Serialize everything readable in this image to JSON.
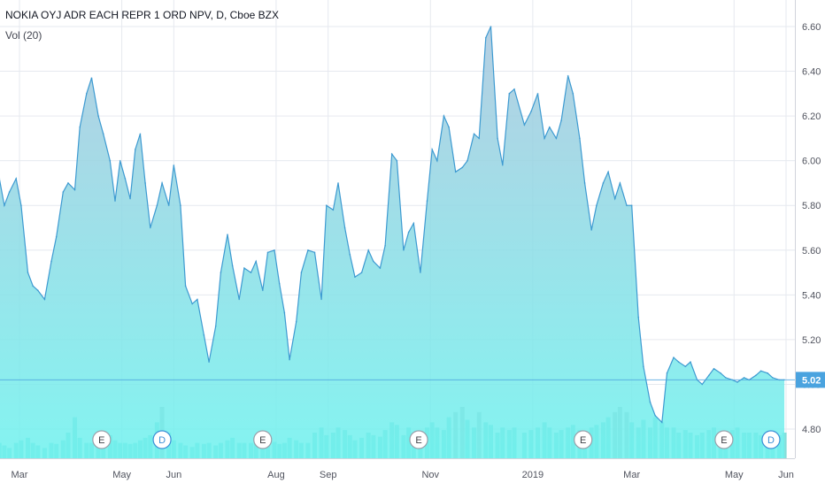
{
  "header": {
    "title": "NOKIA OYJ ADR EACH REPR 1 ORD NPV, D, Cboe BZX",
    "volume_label": "Vol (20)"
  },
  "colors": {
    "price_line": "#3d9ad1",
    "area_top": "#a9c6dd",
    "area_bottom": "#6df2ee",
    "volume": "#5fd6d0",
    "volume_highlight": "#9fb5b5",
    "last_price_badge": "#4aa3df",
    "axis_text": "#50535e",
    "grid": "#e6e9ef"
  },
  "chart_data": {
    "type": "area",
    "title": "NOKIA OYJ ADR EACH REPR 1 ORD NPV, D, Cboe BZX",
    "ylim": [
      4.7,
      6.64
    ],
    "y_ticks": [
      "6.60",
      "6.40",
      "6.20",
      "6.00",
      "5.80",
      "5.60",
      "5.40",
      "5.20",
      "5.00",
      "4.80"
    ],
    "x_ticks": [
      "Mar",
      "May",
      "Jun",
      "Aug",
      "Sep",
      "Nov",
      "2019",
      "Mar",
      "May",
      "Jun"
    ],
    "x_tick_dates": [
      "2018-03-01",
      "2018-05-01",
      "2018-06-01",
      "2018-08-01",
      "2018-09-01",
      "2018-11-01",
      "2019-01-01",
      "2019-03-01",
      "2019-05-01",
      "2019-06-01"
    ],
    "last_price": "5.02",
    "series": [
      {
        "dates": [
          "2018-02-14",
          "2018-02-17",
          "2018-02-20",
          "2018-02-23",
          "2018-02-27",
          "2018-03-02",
          "2018-03-06",
          "2018-03-09",
          "2018-03-12",
          "2018-03-16",
          "2018-03-20",
          "2018-03-23",
          "2018-03-27",
          "2018-03-30",
          "2018-04-03",
          "2018-04-06",
          "2018-04-10",
          "2018-04-13",
          "2018-04-17",
          "2018-04-20",
          "2018-04-24",
          "2018-04-27",
          "2018-04-30",
          "2018-05-03",
          "2018-05-06",
          "2018-05-09",
          "2018-05-12",
          "2018-05-15",
          "2018-05-18",
          "2018-05-22",
          "2018-05-25",
          "2018-05-29",
          "2018-06-01",
          "2018-06-05",
          "2018-06-08",
          "2018-06-12",
          "2018-06-15",
          "2018-06-19",
          "2018-06-22",
          "2018-06-26",
          "2018-06-29",
          "2018-07-03",
          "2018-07-06",
          "2018-07-10",
          "2018-07-13",
          "2018-07-17",
          "2018-07-20",
          "2018-07-24",
          "2018-07-27",
          "2018-07-31",
          "2018-08-03",
          "2018-08-06",
          "2018-08-09",
          "2018-08-13",
          "2018-08-16",
          "2018-08-20",
          "2018-08-24",
          "2018-08-28",
          "2018-08-31",
          "2018-09-04",
          "2018-09-07",
          "2018-09-11",
          "2018-09-14",
          "2018-09-17",
          "2018-09-21",
          "2018-09-25",
          "2018-09-28",
          "2018-10-02",
          "2018-10-05",
          "2018-10-09",
          "2018-10-12",
          "2018-10-16",
          "2018-10-19",
          "2018-10-22",
          "2018-10-26",
          "2018-10-30",
          "2018-11-02",
          "2018-11-05",
          "2018-11-09",
          "2018-11-12",
          "2018-11-16",
          "2018-11-20",
          "2018-11-23",
          "2018-11-27",
          "2018-11-30",
          "2018-12-04",
          "2018-12-07",
          "2018-12-11",
          "2018-12-14",
          "2018-12-18",
          "2018-12-21",
          "2018-12-27",
          "2018-12-31",
          "2019-01-04",
          "2019-01-08",
          "2019-01-11",
          "2019-01-15",
          "2019-01-18",
          "2019-01-22",
          "2019-01-25",
          "2019-01-29",
          "2019-02-01",
          "2019-02-05",
          "2019-02-08",
          "2019-02-12",
          "2019-02-15",
          "2019-02-19",
          "2019-02-22",
          "2019-02-26",
          "2019-03-01",
          "2019-03-05",
          "2019-03-08",
          "2019-03-12",
          "2019-03-15",
          "2019-03-19",
          "2019-03-22",
          "2019-03-26",
          "2019-03-29",
          "2019-04-02",
          "2019-04-05",
          "2019-04-09",
          "2019-04-12",
          "2019-04-16",
          "2019-04-19",
          "2019-04-23",
          "2019-04-26",
          "2019-04-30",
          "2019-05-03",
          "2019-05-07",
          "2019-05-10",
          "2019-05-14",
          "2019-05-17",
          "2019-05-21",
          "2019-05-24",
          "2019-05-28",
          "2019-05-31"
        ],
        "values": [
          5.7,
          5.92,
          5.8,
          5.86,
          5.92,
          5.8,
          5.5,
          5.44,
          5.42,
          5.38,
          5.55,
          5.66,
          5.86,
          5.9,
          5.87,
          6.15,
          6.3,
          6.37,
          6.2,
          6.12,
          6.0,
          5.82,
          6.0,
          5.92,
          5.83,
          6.05,
          6.12,
          5.9,
          5.7,
          5.8,
          5.9,
          5.8,
          5.98,
          5.8,
          5.44,
          5.36,
          5.38,
          5.22,
          5.1,
          5.26,
          5.5,
          5.67,
          5.53,
          5.38,
          5.52,
          5.5,
          5.55,
          5.42,
          5.59,
          5.6,
          5.45,
          5.32,
          5.11,
          5.28,
          5.5,
          5.6,
          5.59,
          5.38,
          5.8,
          5.78,
          5.9,
          5.7,
          5.58,
          5.48,
          5.5,
          5.6,
          5.55,
          5.52,
          5.62,
          6.03,
          6.0,
          5.6,
          5.68,
          5.72,
          5.5,
          5.82,
          6.05,
          6.0,
          6.2,
          6.15,
          5.95,
          5.97,
          6.0,
          6.12,
          6.1,
          6.55,
          6.6,
          6.1,
          5.98,
          6.3,
          6.32,
          6.16,
          6.22,
          6.3,
          6.1,
          6.15,
          6.1,
          6.18,
          6.38,
          6.3,
          6.1,
          5.9,
          5.69,
          5.8,
          5.9,
          5.95,
          5.83,
          5.9,
          5.8,
          5.8,
          5.3,
          5.08,
          4.92,
          4.86,
          4.83,
          5.05,
          5.12,
          5.1,
          5.08,
          5.1,
          5.02,
          5.0,
          5.04,
          5.07,
          5.05,
          5.03,
          5.02,
          5.01,
          5.03,
          5.02,
          5.04,
          5.06,
          5.05,
          5.03,
          5.02,
          5.02
        ],
        "volume": [
          0.2,
          0.3,
          0.25,
          0.2,
          0.3,
          0.35,
          0.4,
          0.3,
          0.25,
          0.2,
          0.3,
          0.28,
          0.35,
          0.5,
          0.8,
          0.4,
          0.3,
          0.3,
          0.25,
          0.3,
          0.45,
          0.35,
          0.3,
          0.3,
          0.28,
          0.3,
          0.35,
          0.4,
          0.45,
          0.7,
          1.0,
          0.5,
          0.35,
          0.3,
          0.25,
          0.22,
          0.3,
          0.28,
          0.3,
          0.25,
          0.3,
          0.35,
          0.4,
          0.3,
          0.3,
          0.3,
          0.35,
          0.25,
          0.3,
          0.32,
          0.28,
          0.3,
          0.4,
          0.35,
          0.3,
          0.3,
          0.5,
          0.6,
          0.45,
          0.5,
          0.6,
          0.55,
          0.45,
          0.35,
          0.4,
          0.5,
          0.45,
          0.42,
          0.55,
          0.7,
          0.65,
          0.45,
          0.6,
          0.5,
          0.45,
          0.6,
          0.7,
          0.6,
          0.55,
          0.8,
          0.9,
          1.0,
          0.75,
          0.6,
          0.9,
          0.7,
          0.65,
          0.5,
          0.6,
          0.55,
          0.6,
          0.5,
          0.55,
          0.6,
          0.7,
          0.6,
          0.5,
          0.55,
          0.6,
          0.65,
          0.55,
          0.5,
          0.6,
          0.65,
          0.7,
          0.8,
          0.9,
          1.0,
          0.9,
          0.7,
          0.6,
          0.75,
          0.6,
          0.8,
          0.7,
          0.6,
          0.6,
          0.5,
          0.55,
          0.5,
          0.45,
          0.5,
          0.55,
          0.6,
          0.5,
          0.45,
          0.55,
          0.6,
          0.5,
          0.5,
          0.5,
          0.45,
          0.5,
          0.5,
          0.45,
          0.5
        ]
      }
    ],
    "event_markers": [
      {
        "label": "E",
        "date": "2018-04-19"
      },
      {
        "label": "D",
        "date": "2018-05-25"
      },
      {
        "label": "E",
        "date": "2018-07-24"
      },
      {
        "label": "E",
        "date": "2018-10-25"
      },
      {
        "label": "E",
        "date": "2019-01-31"
      },
      {
        "label": "E",
        "date": "2019-04-25"
      },
      {
        "label": "D",
        "date": "2019-05-23"
      }
    ]
  }
}
